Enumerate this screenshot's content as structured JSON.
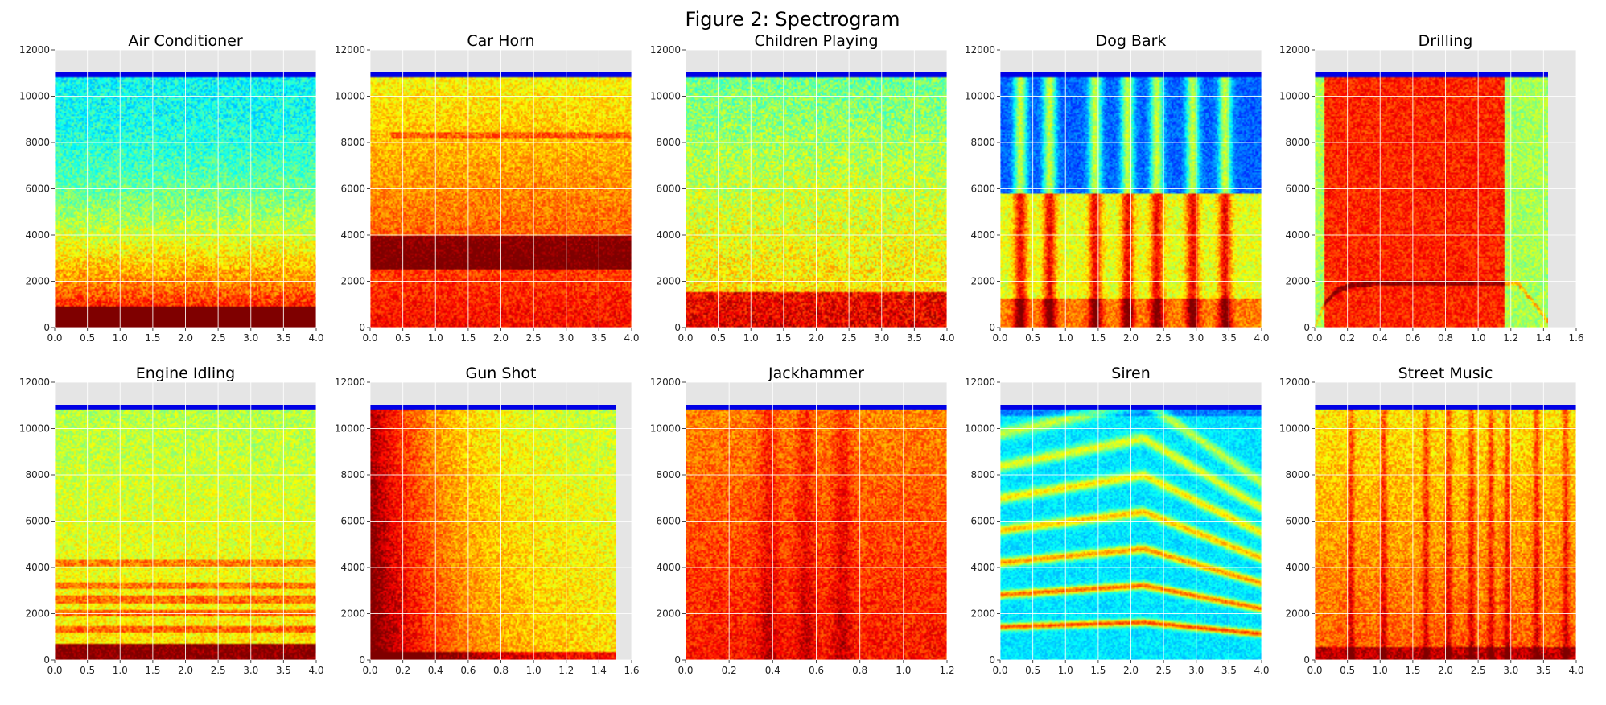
{
  "figure_title": "Figure 2: Spectrogram",
  "colors": {
    "axes_background": "#e5e5e5",
    "grid": "#ffffff",
    "colormap": "jet"
  },
  "chart_data": [
    {
      "type": "heatmap",
      "title": "Air Conditioner",
      "xlim": [
        0,
        4.0
      ],
      "ylim": [
        0,
        12000
      ],
      "xticks": [
        "0.0",
        "0.5",
        "1.0",
        "1.5",
        "2.0",
        "2.5",
        "3.0",
        "3.5",
        "4.0"
      ],
      "yticks": [
        "0",
        "2000",
        "4000",
        "6000",
        "8000",
        "10000",
        "12000"
      ],
      "data_range": {
        "t": [
          0,
          4.0
        ],
        "f": [
          0,
          11025
        ]
      },
      "pattern": "ac"
    },
    {
      "type": "heatmap",
      "title": "Car Horn",
      "xlim": [
        0,
        4.0
      ],
      "ylim": [
        0,
        12000
      ],
      "xticks": [
        "0.0",
        "0.5",
        "1.0",
        "1.5",
        "2.0",
        "2.5",
        "3.0",
        "3.5",
        "4.0"
      ],
      "yticks": [
        "0",
        "2000",
        "4000",
        "6000",
        "8000",
        "10000",
        "12000"
      ],
      "data_range": {
        "t": [
          0,
          4.0
        ],
        "f": [
          0,
          11025
        ]
      },
      "pattern": "horn"
    },
    {
      "type": "heatmap",
      "title": "Children Playing",
      "xlim": [
        0,
        4.0
      ],
      "ylim": [
        0,
        12000
      ],
      "xticks": [
        "0.0",
        "0.5",
        "1.0",
        "1.5",
        "2.0",
        "2.5",
        "3.0",
        "3.5",
        "4.0"
      ],
      "yticks": [
        "0",
        "2000",
        "4000",
        "6000",
        "8000",
        "10000",
        "12000"
      ],
      "data_range": {
        "t": [
          0,
          4.0
        ],
        "f": [
          0,
          11025
        ]
      },
      "pattern": "children"
    },
    {
      "type": "heatmap",
      "title": "Dog Bark",
      "xlim": [
        0,
        4.0
      ],
      "ylim": [
        0,
        12000
      ],
      "xticks": [
        "0.0",
        "0.5",
        "1.0",
        "1.5",
        "2.0",
        "2.5",
        "3.0",
        "3.5",
        "4.0"
      ],
      "yticks": [
        "0",
        "2000",
        "4000",
        "6000",
        "8000",
        "10000",
        "12000"
      ],
      "data_range": {
        "t": [
          0,
          4.0
        ],
        "f": [
          0,
          11025
        ]
      },
      "pattern": "dog"
    },
    {
      "type": "heatmap",
      "title": "Drilling",
      "xlim": [
        0,
        1.6
      ],
      "ylim": [
        0,
        12000
      ],
      "xticks": [
        "0.0",
        "0.2",
        "0.4",
        "0.6",
        "0.8",
        "1.0",
        "1.2",
        "1.4",
        "1.6"
      ],
      "yticks": [
        "0",
        "2000",
        "4000",
        "6000",
        "8000",
        "10000",
        "12000"
      ],
      "data_range": {
        "t": [
          0,
          1.43
        ],
        "f": [
          0,
          11025
        ]
      },
      "pattern": "drill"
    },
    {
      "type": "heatmap",
      "title": "Engine Idling",
      "xlim": [
        0,
        4.0
      ],
      "ylim": [
        0,
        12000
      ],
      "xticks": [
        "0.0",
        "0.5",
        "1.0",
        "1.5",
        "2.0",
        "2.5",
        "3.0",
        "3.5",
        "4.0"
      ],
      "yticks": [
        "0",
        "2000",
        "4000",
        "6000",
        "8000",
        "10000",
        "12000"
      ],
      "data_range": {
        "t": [
          0,
          4.0
        ],
        "f": [
          0,
          11025
        ]
      },
      "pattern": "engine"
    },
    {
      "type": "heatmap",
      "title": "Gun Shot",
      "xlim": [
        0,
        1.6
      ],
      "ylim": [
        0,
        12000
      ],
      "xticks": [
        "0.0",
        "0.2",
        "0.4",
        "0.6",
        "0.8",
        "1.0",
        "1.2",
        "1.4",
        "1.6"
      ],
      "yticks": [
        "0",
        "2000",
        "4000",
        "6000",
        "8000",
        "10000",
        "12000"
      ],
      "data_range": {
        "t": [
          0,
          1.5
        ],
        "f": [
          0,
          11025
        ]
      },
      "pattern": "gun"
    },
    {
      "type": "heatmap",
      "title": "Jackhammer",
      "xlim": [
        0,
        1.2
      ],
      "ylim": [
        0,
        12000
      ],
      "xticks": [
        "0.0",
        "0.2",
        "0.4",
        "0.6",
        "0.8",
        "1.0",
        "1.2"
      ],
      "yticks": [
        "0",
        "2000",
        "4000",
        "6000",
        "8000",
        "10000",
        "12000"
      ],
      "data_range": {
        "t": [
          0,
          1.2
        ],
        "f": [
          0,
          11025
        ]
      },
      "pattern": "jack"
    },
    {
      "type": "heatmap",
      "title": "Siren",
      "xlim": [
        0,
        4.0
      ],
      "ylim": [
        0,
        12000
      ],
      "xticks": [
        "0.0",
        "0.5",
        "1.0",
        "1.5",
        "2.0",
        "2.5",
        "3.0",
        "3.5",
        "4.0"
      ],
      "yticks": [
        "0",
        "2000",
        "4000",
        "6000",
        "8000",
        "10000",
        "12000"
      ],
      "data_range": {
        "t": [
          0,
          4.0
        ],
        "f": [
          0,
          11025
        ]
      },
      "pattern": "siren"
    },
    {
      "type": "heatmap",
      "title": "Street Music",
      "xlim": [
        0,
        4.0
      ],
      "ylim": [
        0,
        12000
      ],
      "xticks": [
        "0.0",
        "0.5",
        "1.0",
        "1.5",
        "2.0",
        "2.5",
        "3.0",
        "3.5",
        "4.0"
      ],
      "yticks": [
        "0",
        "2000",
        "4000",
        "6000",
        "8000",
        "10000",
        "12000"
      ],
      "data_range": {
        "t": [
          0,
          4.0
        ],
        "f": [
          0,
          11025
        ]
      },
      "pattern": "music"
    }
  ]
}
